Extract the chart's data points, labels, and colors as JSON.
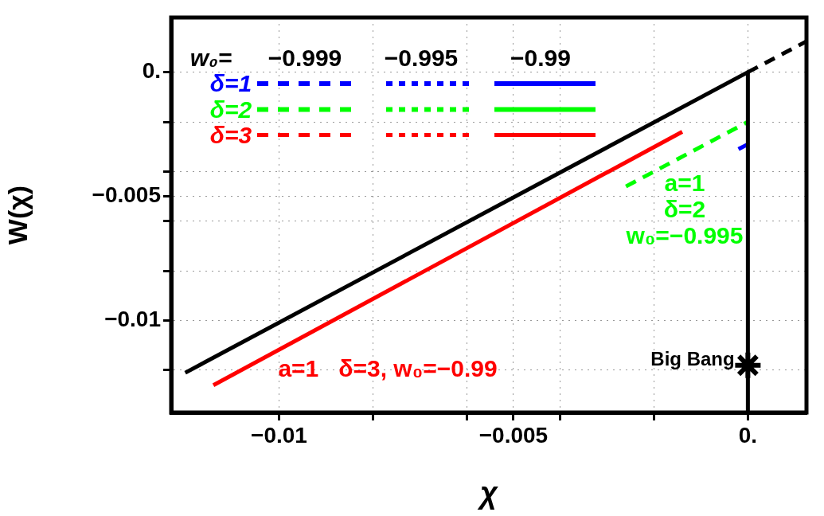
{
  "chart_data": {
    "type": "line",
    "xlabel": "χ",
    "ylabel": "W(χ)",
    "xlim": [
      -0.0123,
      0.00125
    ],
    "ylim": [
      -0.0137,
      0.0022
    ],
    "xticks": [
      {
        "value": -0.01,
        "label": "−0.01"
      },
      {
        "value": -0.008,
        "label": null
      },
      {
        "value": -0.006,
        "label": null
      },
      {
        "value": -0.005,
        "label": "−0.005"
      },
      {
        "value": -0.004,
        "label": null
      },
      {
        "value": -0.002,
        "label": null
      },
      {
        "value": 0,
        "label": "0."
      }
    ],
    "yticks": [
      {
        "value": 0,
        "label": "0."
      },
      {
        "value": -0.002,
        "label": null
      },
      {
        "value": -0.004,
        "label": null
      },
      {
        "value": -0.005,
        "label": "−0.005"
      },
      {
        "value": -0.006,
        "label": null
      },
      {
        "value": -0.008,
        "label": null
      },
      {
        "value": -0.01,
        "label": "−0.01"
      },
      {
        "value": -0.012,
        "label": null
      }
    ],
    "grid": true,
    "legend": false,
    "series": [
      {
        "color": "#000000",
        "x": [
          -0.012,
          0
        ],
        "values": [
          -0.0121,
          0
        ],
        "line_style": "solid",
        "marker": "none"
      },
      {
        "color": "#000000",
        "x": [
          0,
          0.00125
        ],
        "values": [
          0,
          0.00124
        ],
        "line_style": "dashed",
        "marker": "none"
      },
      {
        "color": "#000000",
        "x": [
          0,
          0
        ],
        "values": [
          0,
          -0.0137
        ],
        "line_style": "solid",
        "marker": "none"
      },
      {
        "color": "#ff0000",
        "x": [
          -0.0114,
          -0.0014
        ],
        "values": [
          -0.0126,
          -0.0024
        ],
        "line_style": "solid",
        "marker": "none"
      },
      {
        "color": "#00ff00",
        "x": [
          -0.0026,
          0
        ],
        "values": [
          -0.0046,
          -0.002
        ],
        "line_style": "dashed",
        "marker": "none"
      },
      {
        "color": "#0000ff",
        "x": [
          -0.0002,
          0
        ],
        "values": [
          -0.0031,
          -0.0029
        ],
        "line_style": "solid",
        "marker": "none"
      },
      {
        "type": "scatter",
        "color": "#000000",
        "x": [
          0
        ],
        "values": [
          -0.0118
        ],
        "marker": "cross"
      }
    ],
    "annotations": [
      "w₀=",
      "−0.999",
      "−0.995",
      "−0.99",
      "δ=1",
      "δ=2",
      "δ=3",
      "a=1   δ=3, w₀=−0.99",
      "a=1\nδ=2\nw₀=−0.995",
      "Big Bang"
    ]
  }
}
